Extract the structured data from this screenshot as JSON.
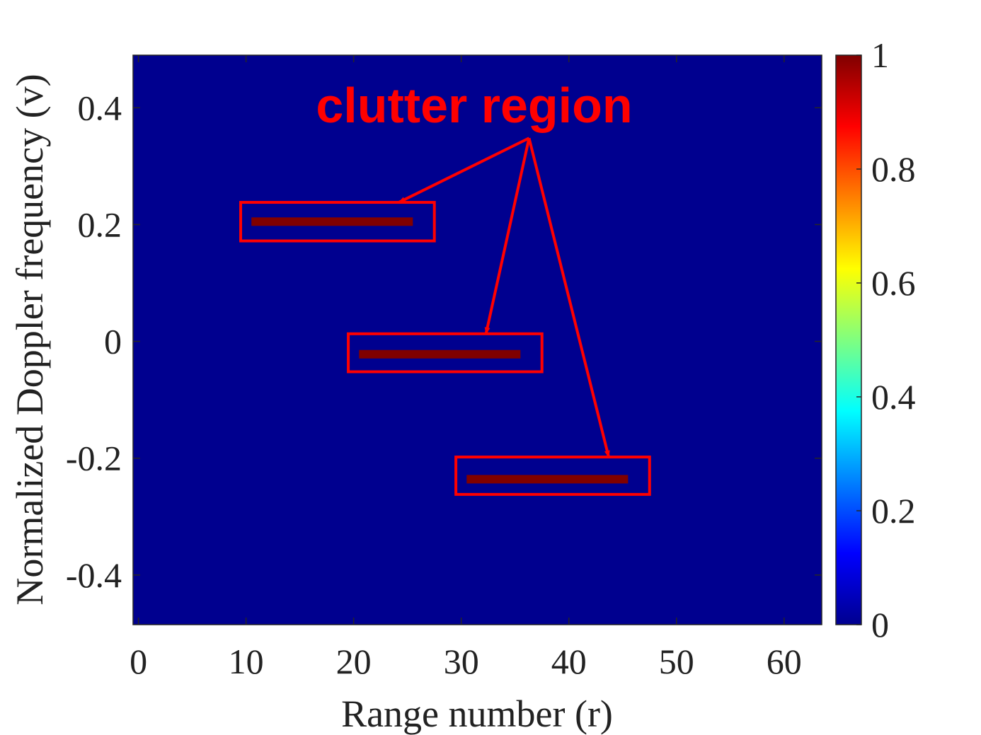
{
  "chart_data": {
    "type": "heatmap",
    "xlabel": "Range number (r)",
    "ylabel": "Normalized Doppler frequency (v)",
    "xlim": [
      -0.5,
      63.5
    ],
    "ylim": [
      -0.485,
      0.49
    ],
    "xticks": [
      0,
      10,
      20,
      30,
      40,
      50,
      60
    ],
    "xtick_labels": [
      "0",
      "10",
      "20",
      "30",
      "40",
      "50",
      "60"
    ],
    "yticks": [
      -0.4,
      -0.2,
      0,
      0.2,
      0.4
    ],
    "ytick_labels": [
      "-0.4",
      "-0.2",
      "0",
      "0.2",
      "0.4"
    ],
    "background_value": 0,
    "segments": [
      {
        "x_start": 11,
        "x_end": 26,
        "y": 0.205,
        "value": 1
      },
      {
        "x_start": 21,
        "x_end": 36,
        "y": -0.022,
        "value": 1
      },
      {
        "x_start": 31,
        "x_end": 46,
        "y": -0.236,
        "value": 1
      }
    ],
    "colorbar": {
      "colormap": "jet",
      "range": [
        0,
        1
      ],
      "ticks": [
        0,
        0.2,
        0.4,
        0.6,
        0.8,
        1
      ],
      "tick_labels": [
        "0",
        "0.2",
        "0.4",
        "0.6",
        "0.8",
        "1"
      ]
    },
    "annotation": {
      "text": "clutter region",
      "color": "#ff0000",
      "boxes": [
        {
          "x_range": [
            9.5,
            27.5
          ],
          "y_range": [
            0.172,
            0.238
          ]
        },
        {
          "x_range": [
            19.5,
            37.5
          ],
          "y_range": [
            -0.052,
            0.013
          ]
        },
        {
          "x_range": [
            29.5,
            47.5
          ],
          "y_range": [
            -0.262,
            -0.198
          ]
        }
      ],
      "arrow_origin": {
        "x": 36.3,
        "y": 0.348
      },
      "arrow_targets": [
        {
          "x": 24.2,
          "y": 0.238
        },
        {
          "x": 32.3,
          "y": 0.013
        },
        {
          "x": 43.7,
          "y": -0.198
        }
      ]
    },
    "grid": false,
    "legend": "none"
  }
}
